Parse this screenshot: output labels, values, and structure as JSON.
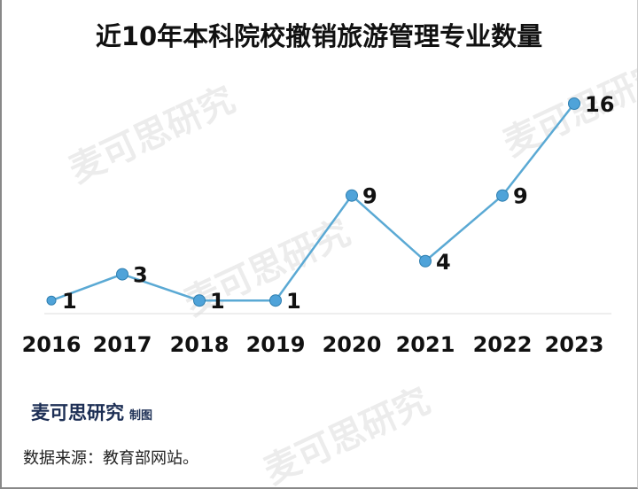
{
  "chart_data": {
    "type": "line",
    "title": "近10年本科院校撤销旅游管理专业数量",
    "categories": [
      "2016",
      "2017",
      "2018",
      "2019",
      "2020",
      "2021",
      "2022",
      "2023"
    ],
    "values": [
      1,
      3,
      1,
      1,
      9,
      4,
      9,
      16
    ],
    "xlabel": "",
    "ylabel": "",
    "ylim": [
      0,
      16
    ],
    "grid": false,
    "line_color": "#5aa9d4",
    "marker_color": "#4fa3d9"
  },
  "credit": {
    "brand": "麦可思研究",
    "suffix": "制图"
  },
  "source": "数据来源：教育部网站。",
  "watermark": "麦可思研究"
}
